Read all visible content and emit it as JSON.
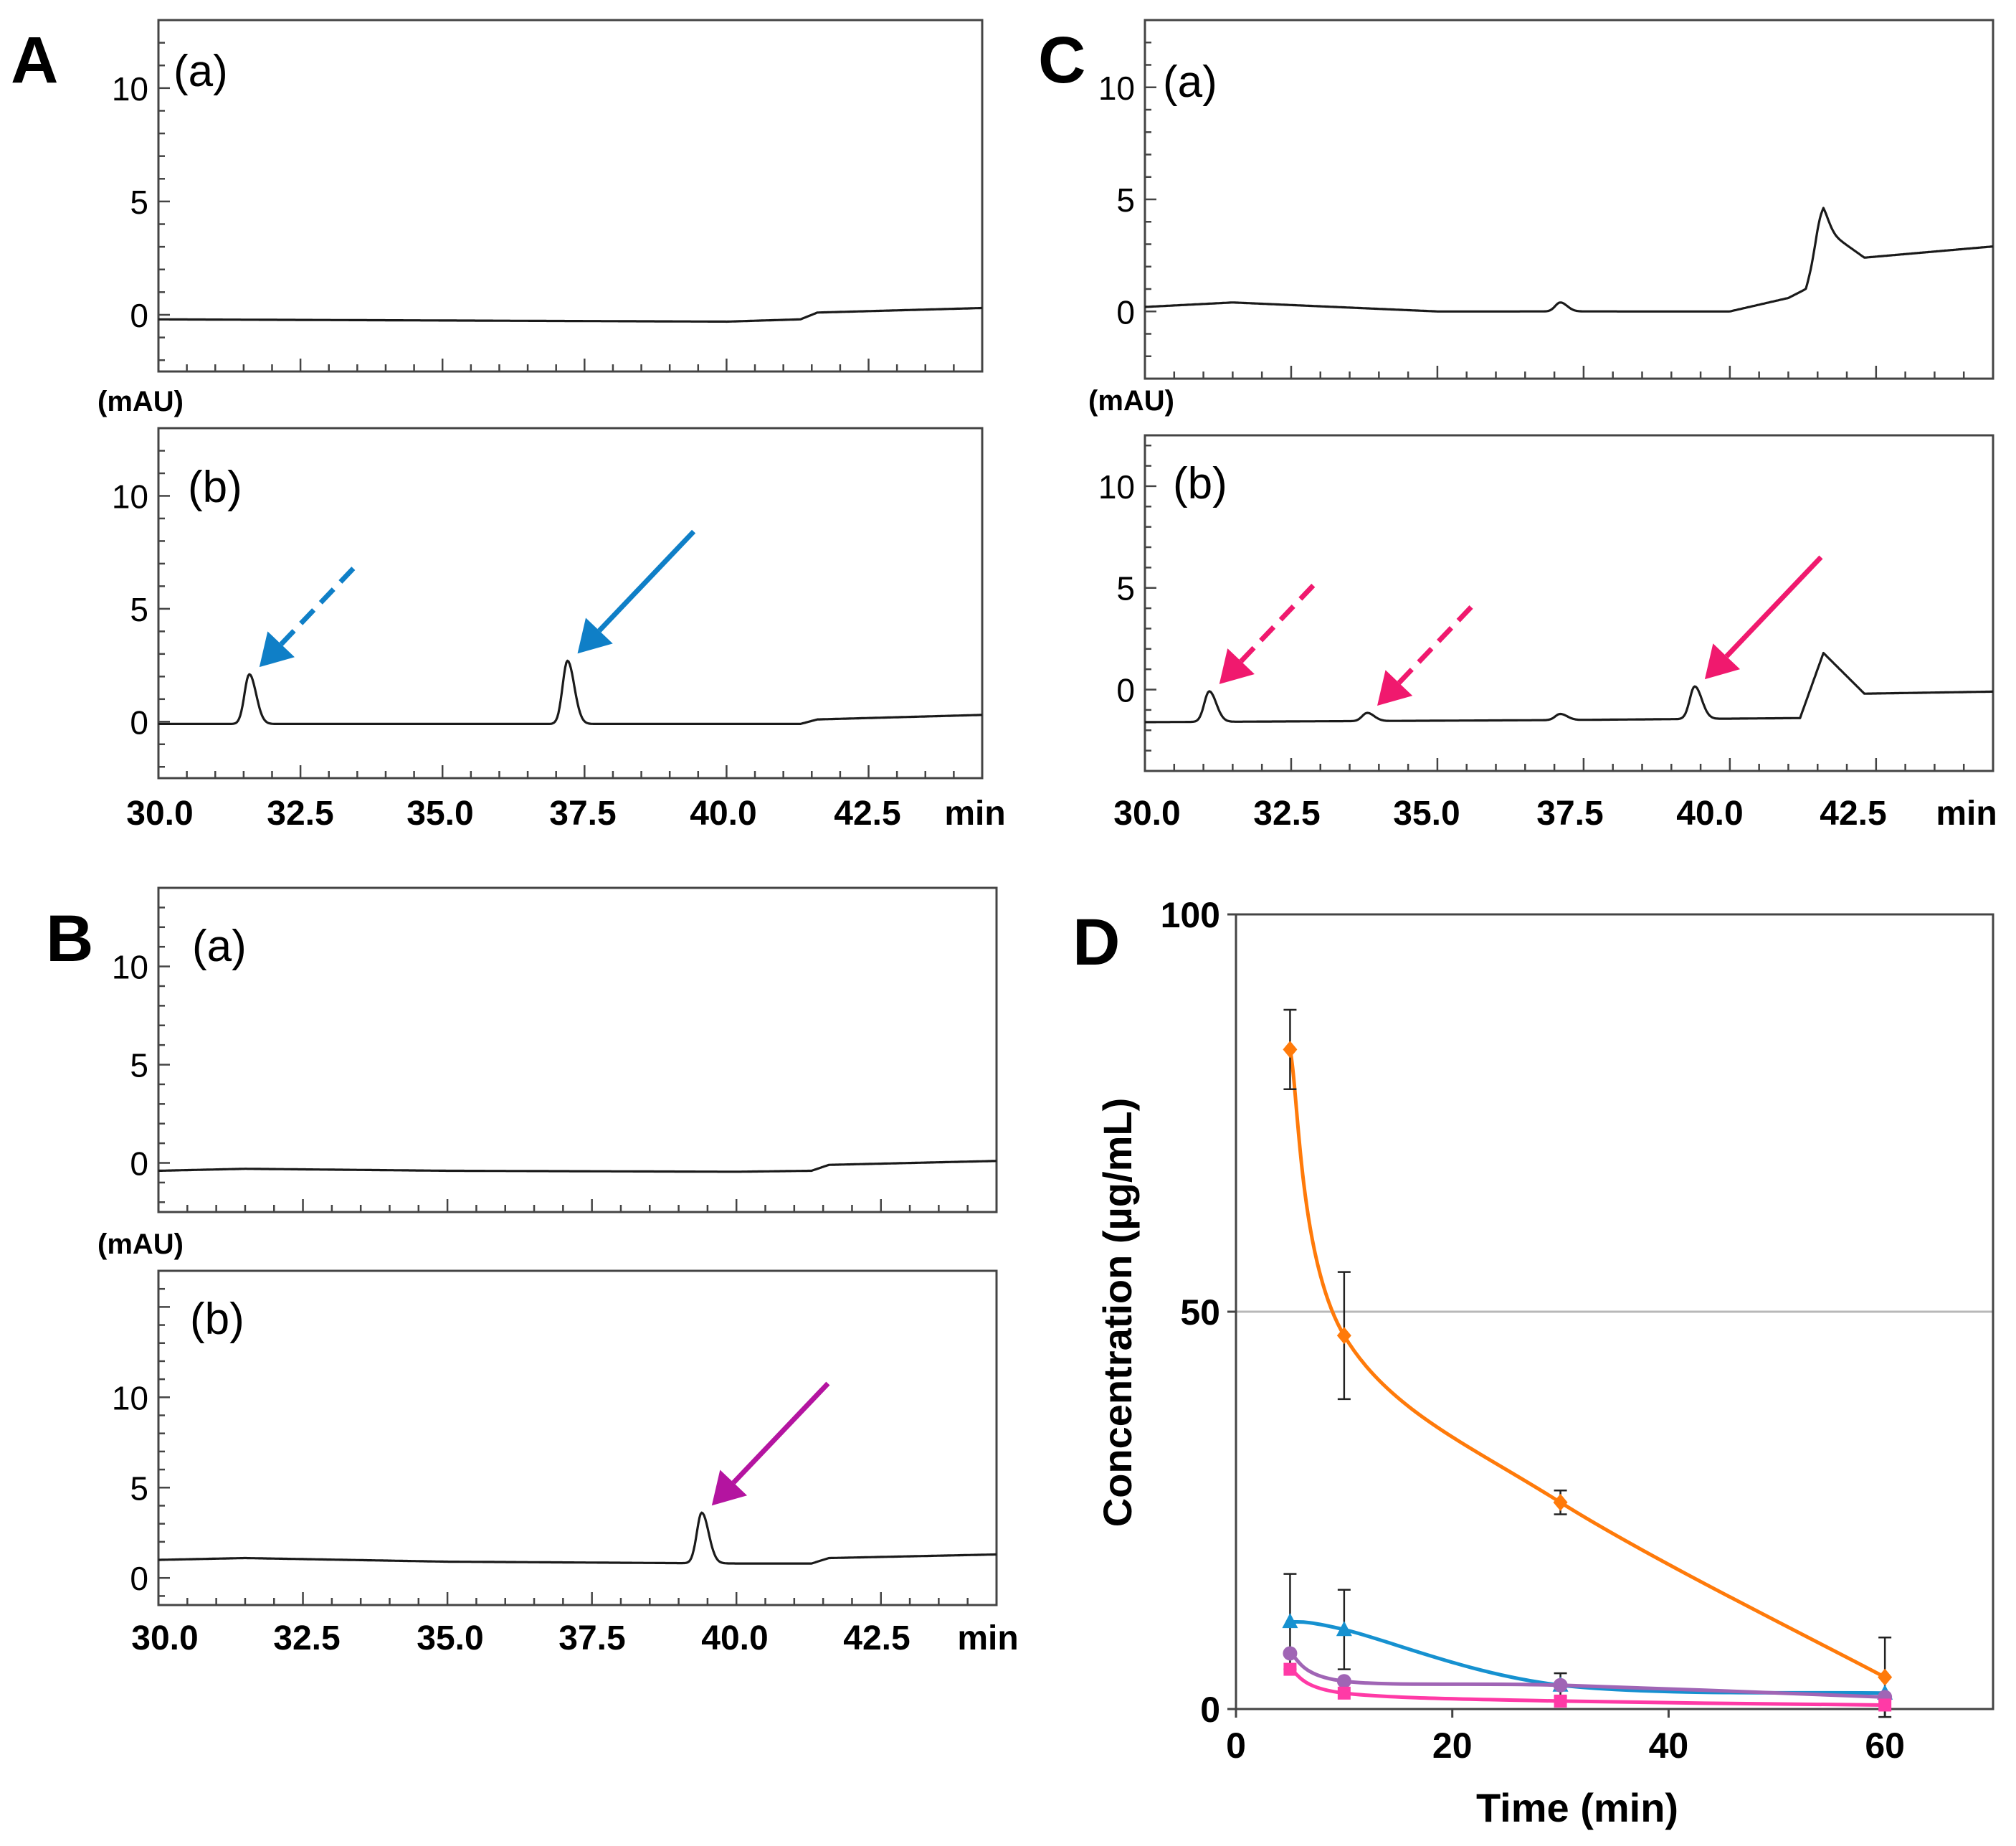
{
  "colors": {
    "trace": "#1a1a1a",
    "blue": "#0f7fc7",
    "pink": "#f0196e",
    "magenta": "#b414a0",
    "orange": "#ff7a0a",
    "teal": "#1691d0",
    "purple": "#a065b5",
    "rose": "#ff3aa6"
  },
  "panels": [
    {
      "key": "A",
      "label": "A",
      "sub_a": {
        "label": "(a)",
        "ylabel": "(mAU)"
      },
      "sub_b": {
        "label": "(b)"
      },
      "xticks": [
        "30.0",
        "32.5",
        "35.0",
        "37.5",
        "40.0",
        "42.5"
      ],
      "xunit": "min"
    },
    {
      "key": "B",
      "label": "B",
      "sub_a": {
        "label": "(a)",
        "ylabel": "(mAU)"
      },
      "sub_b": {
        "label": "(b)"
      },
      "xticks": [
        "30.0",
        "32.5",
        "35.0",
        "37.5",
        "40.0",
        "42.5"
      ],
      "xunit": "min"
    },
    {
      "key": "C",
      "label": "C",
      "sub_a": {
        "label": "(a)",
        "ylabel": "(mAU)"
      },
      "sub_b": {
        "label": "(b)"
      },
      "xticks": [
        "30.0",
        "32.5",
        "35.0",
        "37.5",
        "40.0",
        "42.5"
      ],
      "xunit": "min"
    }
  ],
  "panel_d": {
    "label": "D"
  },
  "chart_data": [
    {
      "panel": "A(a)",
      "type": "line",
      "x_range": [
        30,
        44.5
      ],
      "ylim": [
        -2.5,
        13
      ],
      "yticks": [
        0,
        5,
        10
      ],
      "baseline": {
        "x": [
          30,
          35,
          40,
          41.3,
          41.6,
          44.5
        ],
        "y": [
          -0.2,
          -0.25,
          -0.3,
          -0.2,
          0.1,
          0.3
        ]
      },
      "peaks": [],
      "arrows": []
    },
    {
      "panel": "A(b)",
      "type": "line",
      "x_range": [
        30,
        44.5
      ],
      "ylim": [
        -2.5,
        13
      ],
      "yticks": [
        0,
        5,
        10
      ],
      "baseline": {
        "x": [
          30,
          41.3,
          41.6,
          44.5
        ],
        "y": [
          -0.1,
          -0.1,
          0.1,
          0.3
        ]
      },
      "peaks": [
        {
          "t": 31.6,
          "h": 2.2
        },
        {
          "t": 37.2,
          "h": 2.8
        }
      ],
      "arrows": [
        {
          "t": 31.6,
          "color": "blue",
          "dashed": true
        },
        {
          "t": 37.2,
          "color": "blue",
          "dashed": false
        }
      ]
    },
    {
      "panel": "B(a)",
      "type": "line",
      "x_range": [
        30,
        44.5
      ],
      "ylim": [
        -2.5,
        14
      ],
      "yticks": [
        0,
        5,
        10
      ],
      "baseline": {
        "x": [
          30,
          31.5,
          35,
          40,
          41.3,
          41.6,
          44.5
        ],
        "y": [
          -0.4,
          -0.3,
          -0.4,
          -0.45,
          -0.4,
          -0.1,
          0.1
        ]
      },
      "peaks": [],
      "arrows": []
    },
    {
      "panel": "B(b)",
      "type": "line",
      "x_range": [
        30,
        44.5
      ],
      "ylim": [
        -1.5,
        17
      ],
      "yticks": [
        0,
        5,
        10
      ],
      "baseline": {
        "x": [
          30,
          31.5,
          35,
          40,
          41.3,
          41.6,
          44.5
        ],
        "y": [
          1.0,
          1.1,
          0.9,
          0.8,
          0.8,
          1.1,
          1.3
        ]
      },
      "peaks": [
        {
          "t": 39.4,
          "h": 2.8
        }
      ],
      "arrows": [
        {
          "t": 39.4,
          "color": "magenta",
          "dashed": false
        }
      ]
    },
    {
      "panel": "C(a)",
      "type": "line",
      "x_range": [
        30,
        44.5
      ],
      "ylim": [
        -3,
        13
      ],
      "yticks": [
        0,
        5,
        10
      ],
      "baseline": {
        "x": [
          30,
          31.5,
          35,
          40,
          41.0,
          41.3,
          41.6,
          42.3,
          44.5
        ],
        "y": [
          0.2,
          0.4,
          0.0,
          0.0,
          0.6,
          1.0,
          3.7,
          2.4,
          2.9
        ]
      },
      "peaks": [
        {
          "t": 37.1,
          "h": 0.4
        },
        {
          "t": 41.55,
          "h": 1.0
        }
      ],
      "arrows": []
    },
    {
      "panel": "C(b)",
      "type": "line",
      "x_range": [
        30,
        44.5
      ],
      "ylim": [
        -4,
        12.5
      ],
      "yticks": [
        0,
        5,
        10
      ],
      "baseline": {
        "x": [
          30,
          37,
          41.2,
          41.6,
          42.3,
          44.5
        ],
        "y": [
          -1.6,
          -1.5,
          -1.4,
          1.8,
          -0.2,
          -0.1
        ]
      },
      "peaks": [
        {
          "t": 31.1,
          "h": 1.5
        },
        {
          "t": 33.8,
          "h": 0.4
        },
        {
          "t": 37.1,
          "h": 0.3
        },
        {
          "t": 39.4,
          "h": 1.6
        }
      ],
      "arrows": [
        {
          "t": 31.1,
          "color": "pink",
          "dashed": true
        },
        {
          "t": 33.8,
          "color": "pink",
          "dashed": true
        },
        {
          "t": 39.4,
          "color": "pink",
          "dashed": false
        }
      ]
    },
    {
      "panel": "D",
      "type": "line",
      "title": "",
      "xlabel": "Time (min)",
      "ylabel": "Concentration (µg/mL)",
      "xlim": [
        0,
        70
      ],
      "ylim": [
        0,
        100
      ],
      "xticks": [
        0,
        20,
        40,
        60
      ],
      "yticks": [
        0,
        50,
        100
      ],
      "gridlines_y": [
        50
      ],
      "x": [
        5,
        10,
        30,
        60
      ],
      "series": [
        {
          "name": "orange",
          "color": "orange",
          "marker": "diamond",
          "values": [
            83,
            47,
            26,
            4
          ],
          "err": [
            5,
            8,
            1.5,
            5
          ]
        },
        {
          "name": "blue",
          "color": "teal",
          "marker": "triangle",
          "values": [
            11,
            10,
            3,
            2
          ],
          "err": [
            6,
            5,
            1.5,
            0
          ]
        },
        {
          "name": "purple",
          "color": "purple",
          "marker": "circle",
          "values": [
            7,
            3.5,
            3,
            1.5
          ],
          "err": [
            0,
            0,
            0,
            0
          ]
        },
        {
          "name": "pink",
          "color": "rose",
          "marker": "square",
          "values": [
            5,
            2,
            1,
            0.5
          ],
          "err": [
            0,
            0,
            0,
            0
          ]
        }
      ]
    }
  ]
}
